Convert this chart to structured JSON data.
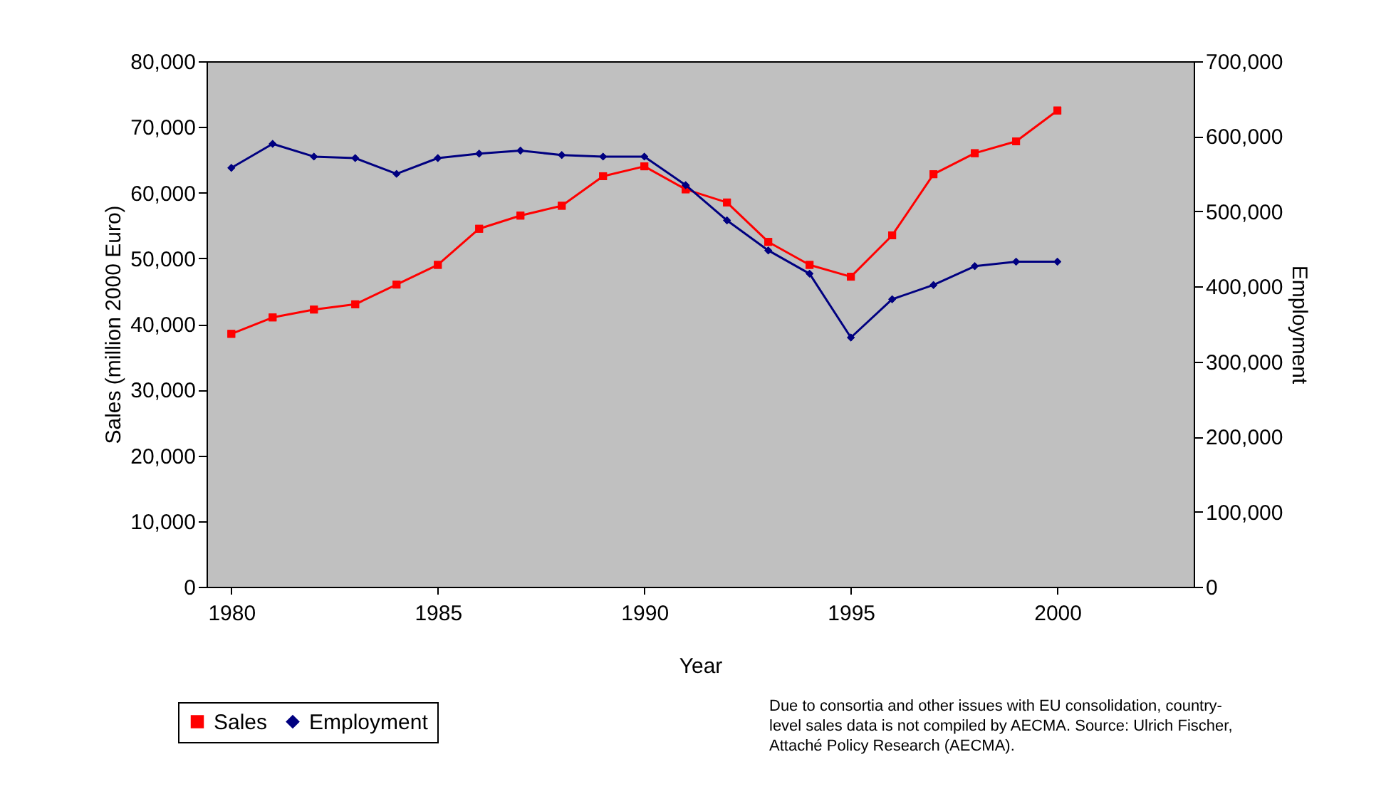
{
  "chart_data": {
    "type": "line",
    "xlabel": "Year",
    "ylabel": "Sales (million 2000 Euro)",
    "y2label": "Employment",
    "x": [
      1980,
      1981,
      1982,
      1983,
      1984,
      1985,
      1986,
      1987,
      1988,
      1989,
      1990,
      1991,
      1992,
      1993,
      1994,
      1995,
      1996,
      1997,
      1998,
      1999,
      2000
    ],
    "series": [
      {
        "name": "Sales",
        "color": "#ff0000",
        "marker": "square",
        "values": [
          38500,
          41000,
          42200,
          43000,
          46000,
          49000,
          54500,
          56500,
          58000,
          62500,
          64000,
          60500,
          58500,
          52500,
          49000,
          47200,
          53500,
          62800,
          66000,
          67800,
          72500
        ]
      },
      {
        "name": "Employment",
        "color": "#000080",
        "marker": "diamond",
        "axis": "y2",
        "values": [
          558000,
          590000,
          573000,
          571000,
          550000,
          571000,
          577000,
          581000,
          575000,
          573000,
          573000,
          535000,
          488000,
          448000,
          417000,
          332000,
          383000,
          402000,
          427000,
          433000,
          433000
        ]
      }
    ],
    "xlim": [
      1979.4,
      2003.3
    ],
    "xticks": [
      1980,
      1985,
      1990,
      1995,
      2000
    ],
    "ylim": [
      0,
      80000
    ],
    "yticks": [
      0,
      {
        "value": 10000,
        "label": "10,000"
      },
      {
        "value": 20000,
        "label": "20,000"
      },
      {
        "value": 30000,
        "label": "30,000"
      },
      {
        "value": 40000,
        "label": "40,000"
      },
      {
        "value": 50000,
        "label": "50,000"
      },
      {
        "value": 60000,
        "label": "60,000"
      },
      {
        "value": 70000,
        "label": "70,000"
      },
      {
        "value": 80000,
        "label": "80,000"
      }
    ],
    "y2lim": [
      0,
      700000
    ],
    "y2ticks": [
      0,
      {
        "value": 100000,
        "label": "100,000"
      },
      {
        "value": 200000,
        "label": "200,000"
      },
      {
        "value": 300000,
        "label": "300,000"
      },
      {
        "value": 400000,
        "label": "400,000"
      },
      {
        "value": 500000,
        "label": "500,000"
      },
      {
        "value": 600000,
        "label": "600,000"
      },
      {
        "value": 700000,
        "label": "700,000"
      }
    ],
    "grid": false,
    "legend": "bottom left",
    "line_style": "solid",
    "annotations": [
      "Due to consortia and other issues with EU consolidation, country-level sales data is not compiled by AECMA. Source: Ulrich Fischer, Attaché Policy Research (AECMA)."
    ]
  }
}
